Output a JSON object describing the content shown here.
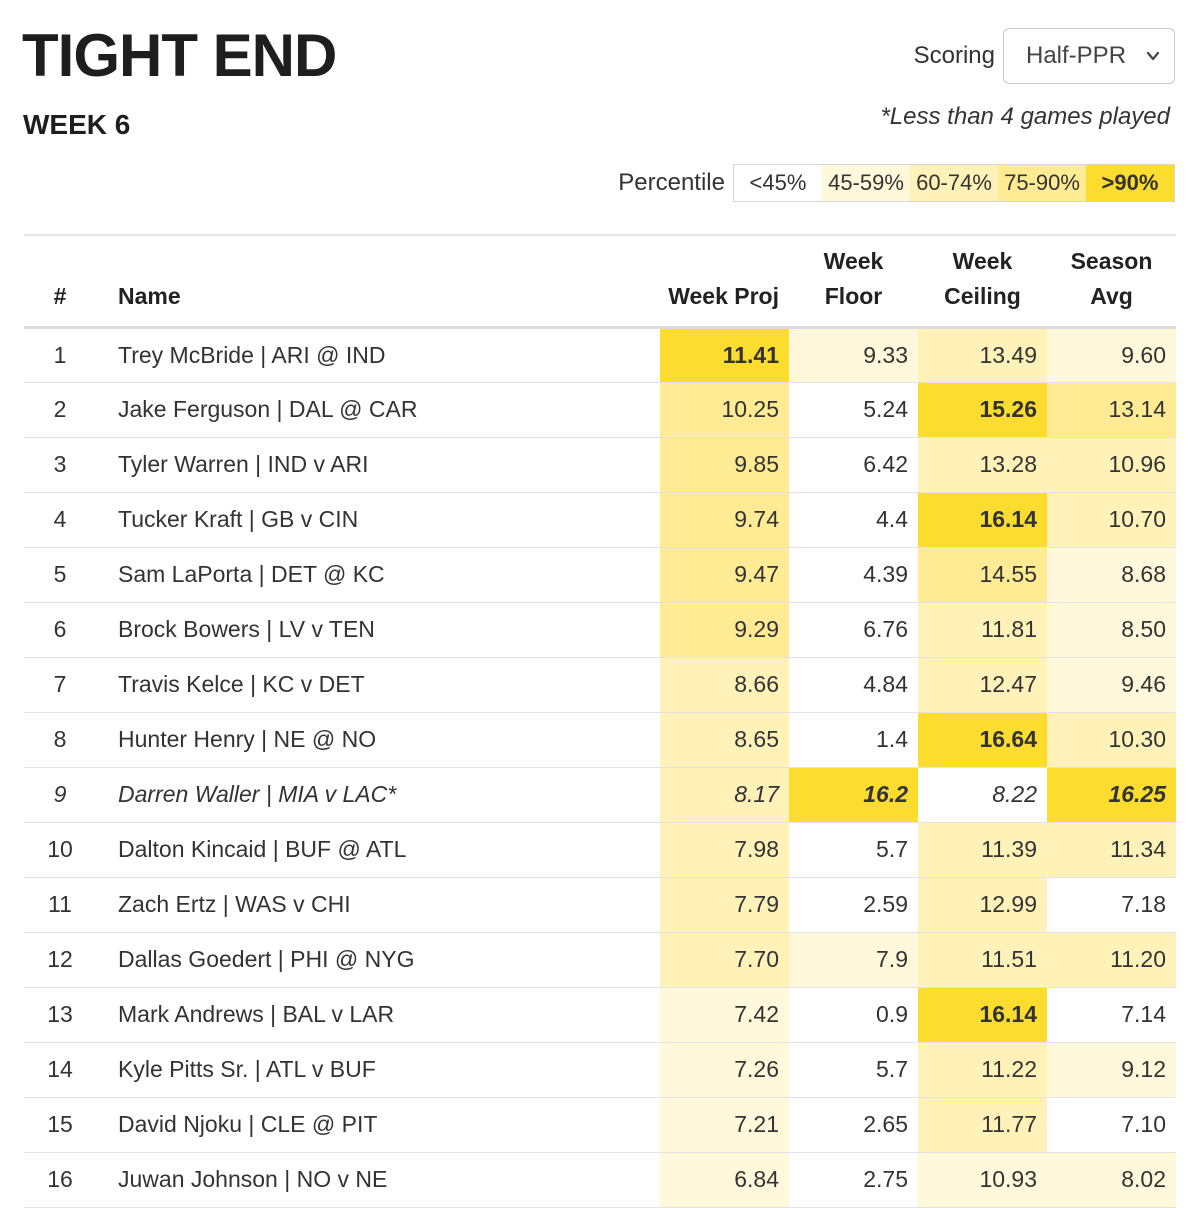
{
  "header": {
    "title": "TIGHT END",
    "week": "WEEK 6",
    "scoring_label": "Scoring",
    "scoring_value": "Half-PPR",
    "note": "*Less than 4 games played"
  },
  "legend": {
    "label": "Percentile",
    "buckets": [
      {
        "label": "<45%",
        "color": "#ffffff"
      },
      {
        "label": "45-59%",
        "color": "#fff8da"
      },
      {
        "label": "60-74%",
        "color": "#fff2b9"
      },
      {
        "label": "75-90%",
        "color": "#ffeb94"
      },
      {
        "label": ">90%",
        "color": "#fcdc2f"
      }
    ]
  },
  "columns": {
    "rank": "#",
    "name": "Name",
    "proj": "Week Proj",
    "floor": [
      "Week",
      "Floor"
    ],
    "ceiling": [
      "Week",
      "Ceiling"
    ],
    "avg": [
      "Season",
      "Avg"
    ]
  },
  "rows": [
    {
      "rank": "1",
      "name": "Trey McBride | ARI @ IND",
      "proj": "11.41",
      "floor": "9.33",
      "ceiling": "13.49",
      "avg": "9.60",
      "tiers": [
        4,
        1,
        2,
        1
      ],
      "italic": false
    },
    {
      "rank": "2",
      "name": "Jake Ferguson | DAL @ CAR",
      "proj": "10.25",
      "floor": "5.24",
      "ceiling": "15.26",
      "avg": "13.14",
      "tiers": [
        3,
        0,
        4,
        3
      ],
      "italic": false
    },
    {
      "rank": "3",
      "name": "Tyler Warren | IND v ARI",
      "proj": "9.85",
      "floor": "6.42",
      "ceiling": "13.28",
      "avg": "10.96",
      "tiers": [
        3,
        0,
        2,
        2
      ],
      "italic": false
    },
    {
      "rank": "4",
      "name": "Tucker Kraft | GB v CIN",
      "proj": "9.74",
      "floor": "4.4",
      "ceiling": "16.14",
      "avg": "10.70",
      "tiers": [
        3,
        0,
        4,
        2
      ],
      "italic": false
    },
    {
      "rank": "5",
      "name": "Sam LaPorta | DET @ KC",
      "proj": "9.47",
      "floor": "4.39",
      "ceiling": "14.55",
      "avg": "8.68",
      "tiers": [
        3,
        0,
        3,
        1
      ],
      "italic": false
    },
    {
      "rank": "6",
      "name": "Brock Bowers | LV v TEN",
      "proj": "9.29",
      "floor": "6.76",
      "ceiling": "11.81",
      "avg": "8.50",
      "tiers": [
        3,
        0,
        2,
        1
      ],
      "italic": false
    },
    {
      "rank": "7",
      "name": "Travis Kelce | KC v DET",
      "proj": "8.66",
      "floor": "4.84",
      "ceiling": "12.47",
      "avg": "9.46",
      "tiers": [
        2,
        0,
        2,
        1
      ],
      "italic": false
    },
    {
      "rank": "8",
      "name": "Hunter Henry | NE @ NO",
      "proj": "8.65",
      "floor": "1.4",
      "ceiling": "16.64",
      "avg": "10.30",
      "tiers": [
        2,
        0,
        4,
        2
      ],
      "italic": false
    },
    {
      "rank": "9",
      "name": "Darren Waller | MIA v LAC*",
      "proj": "8.17",
      "floor": "16.2",
      "ceiling": "8.22",
      "avg": "16.25",
      "tiers": [
        2,
        4,
        0,
        4
      ],
      "italic": true
    },
    {
      "rank": "10",
      "name": "Dalton Kincaid | BUF @ ATL",
      "proj": "7.98",
      "floor": "5.7",
      "ceiling": "11.39",
      "avg": "11.34",
      "tiers": [
        2,
        0,
        2,
        2
      ],
      "italic": false
    },
    {
      "rank": "11",
      "name": "Zach Ertz | WAS v CHI",
      "proj": "7.79",
      "floor": "2.59",
      "ceiling": "12.99",
      "avg": "7.18",
      "tiers": [
        2,
        0,
        2,
        0
      ],
      "italic": false
    },
    {
      "rank": "12",
      "name": "Dallas Goedert | PHI @ NYG",
      "proj": "7.70",
      "floor": "7.9",
      "ceiling": "11.51",
      "avg": "11.20",
      "tiers": [
        2,
        1,
        2,
        2
      ],
      "italic": false
    },
    {
      "rank": "13",
      "name": "Mark Andrews | BAL v LAR",
      "proj": "7.42",
      "floor": "0.9",
      "ceiling": "16.14",
      "avg": "7.14",
      "tiers": [
        1,
        0,
        4,
        0
      ],
      "italic": false
    },
    {
      "rank": "14",
      "name": "Kyle Pitts Sr. | ATL v BUF",
      "proj": "7.26",
      "floor": "5.7",
      "ceiling": "11.22",
      "avg": "9.12",
      "tiers": [
        1,
        0,
        2,
        1
      ],
      "italic": false
    },
    {
      "rank": "15",
      "name": "David Njoku | CLE @ PIT",
      "proj": "7.21",
      "floor": "2.65",
      "ceiling": "11.77",
      "avg": "7.10",
      "tiers": [
        1,
        0,
        2,
        0
      ],
      "italic": false
    },
    {
      "rank": "16",
      "name": "Juwan Johnson | NO v NE",
      "proj": "6.84",
      "floor": "2.75",
      "ceiling": "10.93",
      "avg": "8.02",
      "tiers": [
        1,
        0,
        1,
        1
      ],
      "italic": false
    }
  ]
}
